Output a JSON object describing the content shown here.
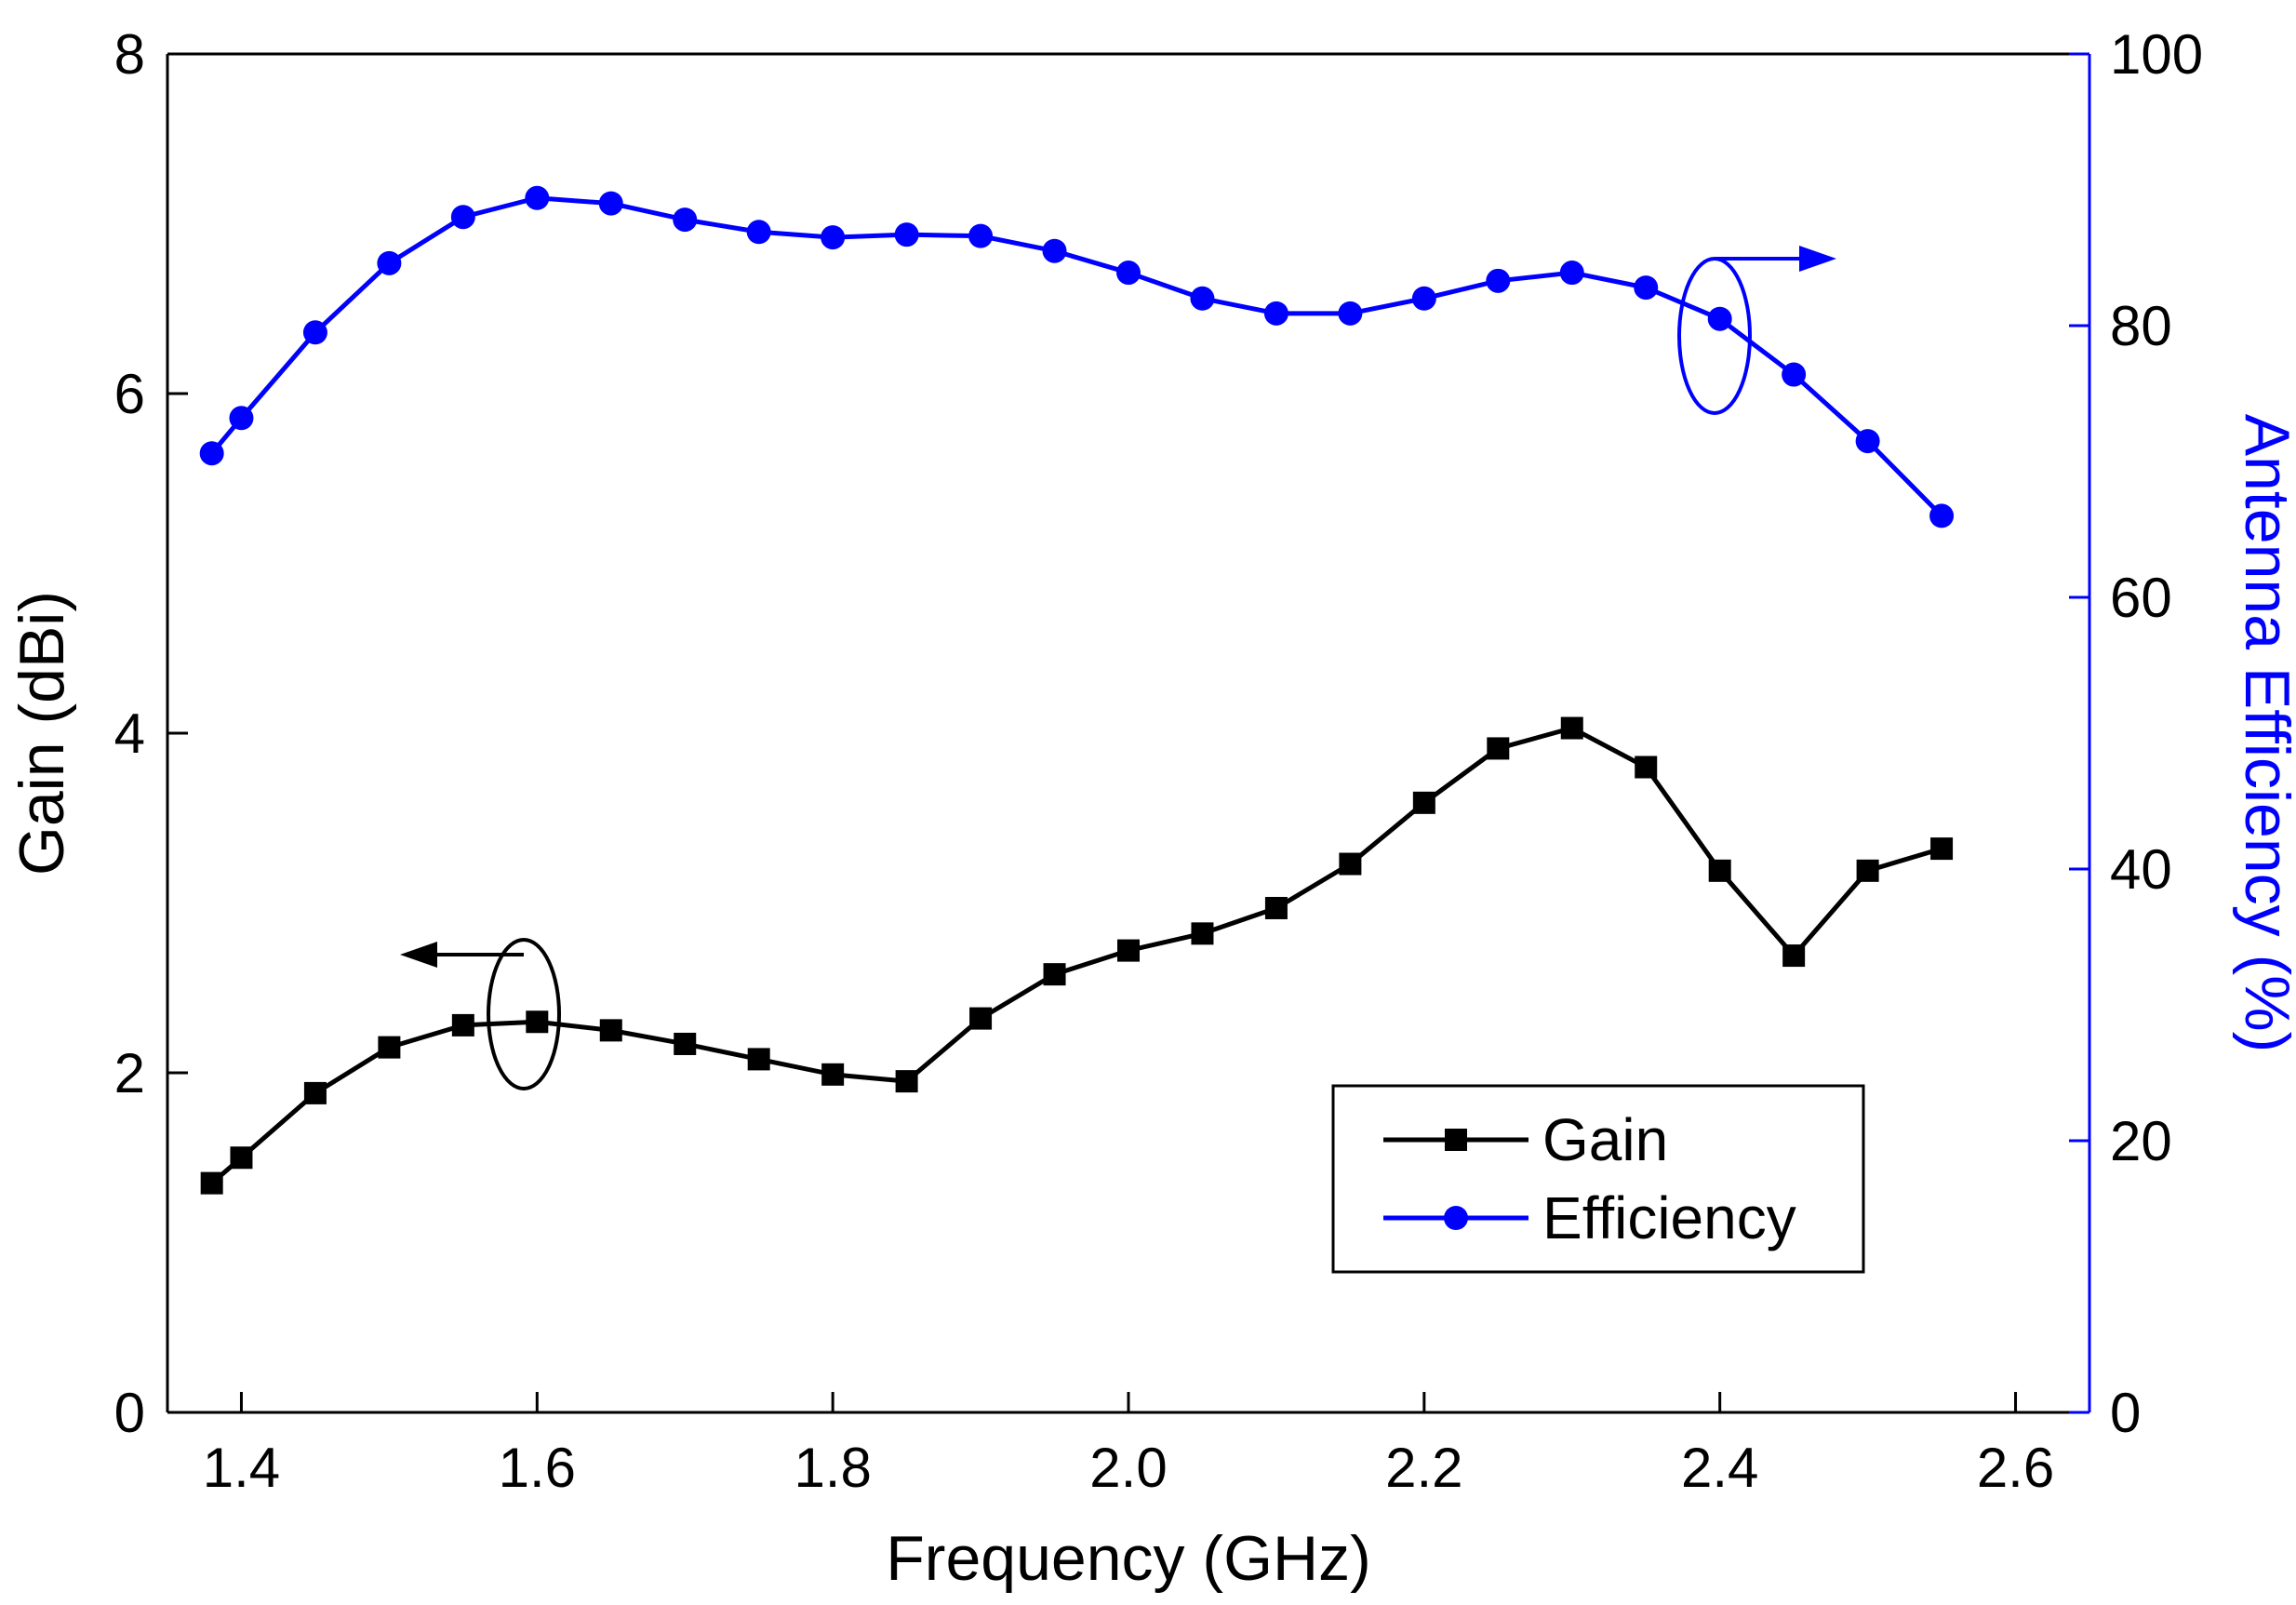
{
  "chart_data": {
    "type": "line",
    "xlabel": "Frequency (GHz)",
    "ylabel_left": "Gain (dBi)",
    "ylabel_right": "Antenna Efficiency (%)",
    "xlim": [
      1.35,
      2.65
    ],
    "ylim_left": [
      0,
      8
    ],
    "ylim_right": [
      0,
      100
    ],
    "x_ticks": [
      "1.4",
      "1.6",
      "1.8",
      "2.0",
      "2.2",
      "2.4",
      "2.6"
    ],
    "y_left_ticks": [
      "0",
      "2",
      "4",
      "6",
      "8"
    ],
    "y_right_ticks": [
      "0",
      "20",
      "40",
      "60",
      "80",
      "100"
    ],
    "grid": false,
    "legend_position": "bottom-right",
    "colors": {
      "gain": "#000000",
      "efficiency": "#0000ff"
    },
    "series": [
      {
        "name": "Gain",
        "axis": "left",
        "marker": "square",
        "x": [
          1.38,
          1.4,
          1.45,
          1.5,
          1.55,
          1.6,
          1.65,
          1.7,
          1.75,
          1.8,
          1.85,
          1.9,
          1.95,
          2.0,
          2.05,
          2.1,
          2.15,
          2.2,
          2.25,
          2.3,
          2.35,
          2.4,
          2.45,
          2.5,
          2.55
        ],
        "values": [
          1.35,
          1.5,
          1.88,
          2.15,
          2.28,
          2.3,
          2.25,
          2.17,
          2.08,
          1.99,
          1.95,
          2.32,
          2.58,
          2.72,
          2.82,
          2.97,
          3.23,
          3.59,
          3.91,
          4.03,
          3.8,
          3.19,
          2.69,
          3.19,
          3.32
        ]
      },
      {
        "name": "Efficiency",
        "axis": "right",
        "marker": "circle",
        "x": [
          1.38,
          1.4,
          1.45,
          1.5,
          1.55,
          1.6,
          1.65,
          1.7,
          1.75,
          1.8,
          1.85,
          1.9,
          1.95,
          2.0,
          2.05,
          2.1,
          2.15,
          2.2,
          2.25,
          2.3,
          2.35,
          2.4,
          2.45,
          2.5,
          2.55
        ],
        "values": [
          70.6,
          73.2,
          79.5,
          84.6,
          88.0,
          89.4,
          89.0,
          87.8,
          86.9,
          86.5,
          86.7,
          86.6,
          85.5,
          83.9,
          82.0,
          80.9,
          80.9,
          82.0,
          83.3,
          83.9,
          82.8,
          80.5,
          76.4,
          71.5,
          66.0
        ]
      }
    ]
  }
}
